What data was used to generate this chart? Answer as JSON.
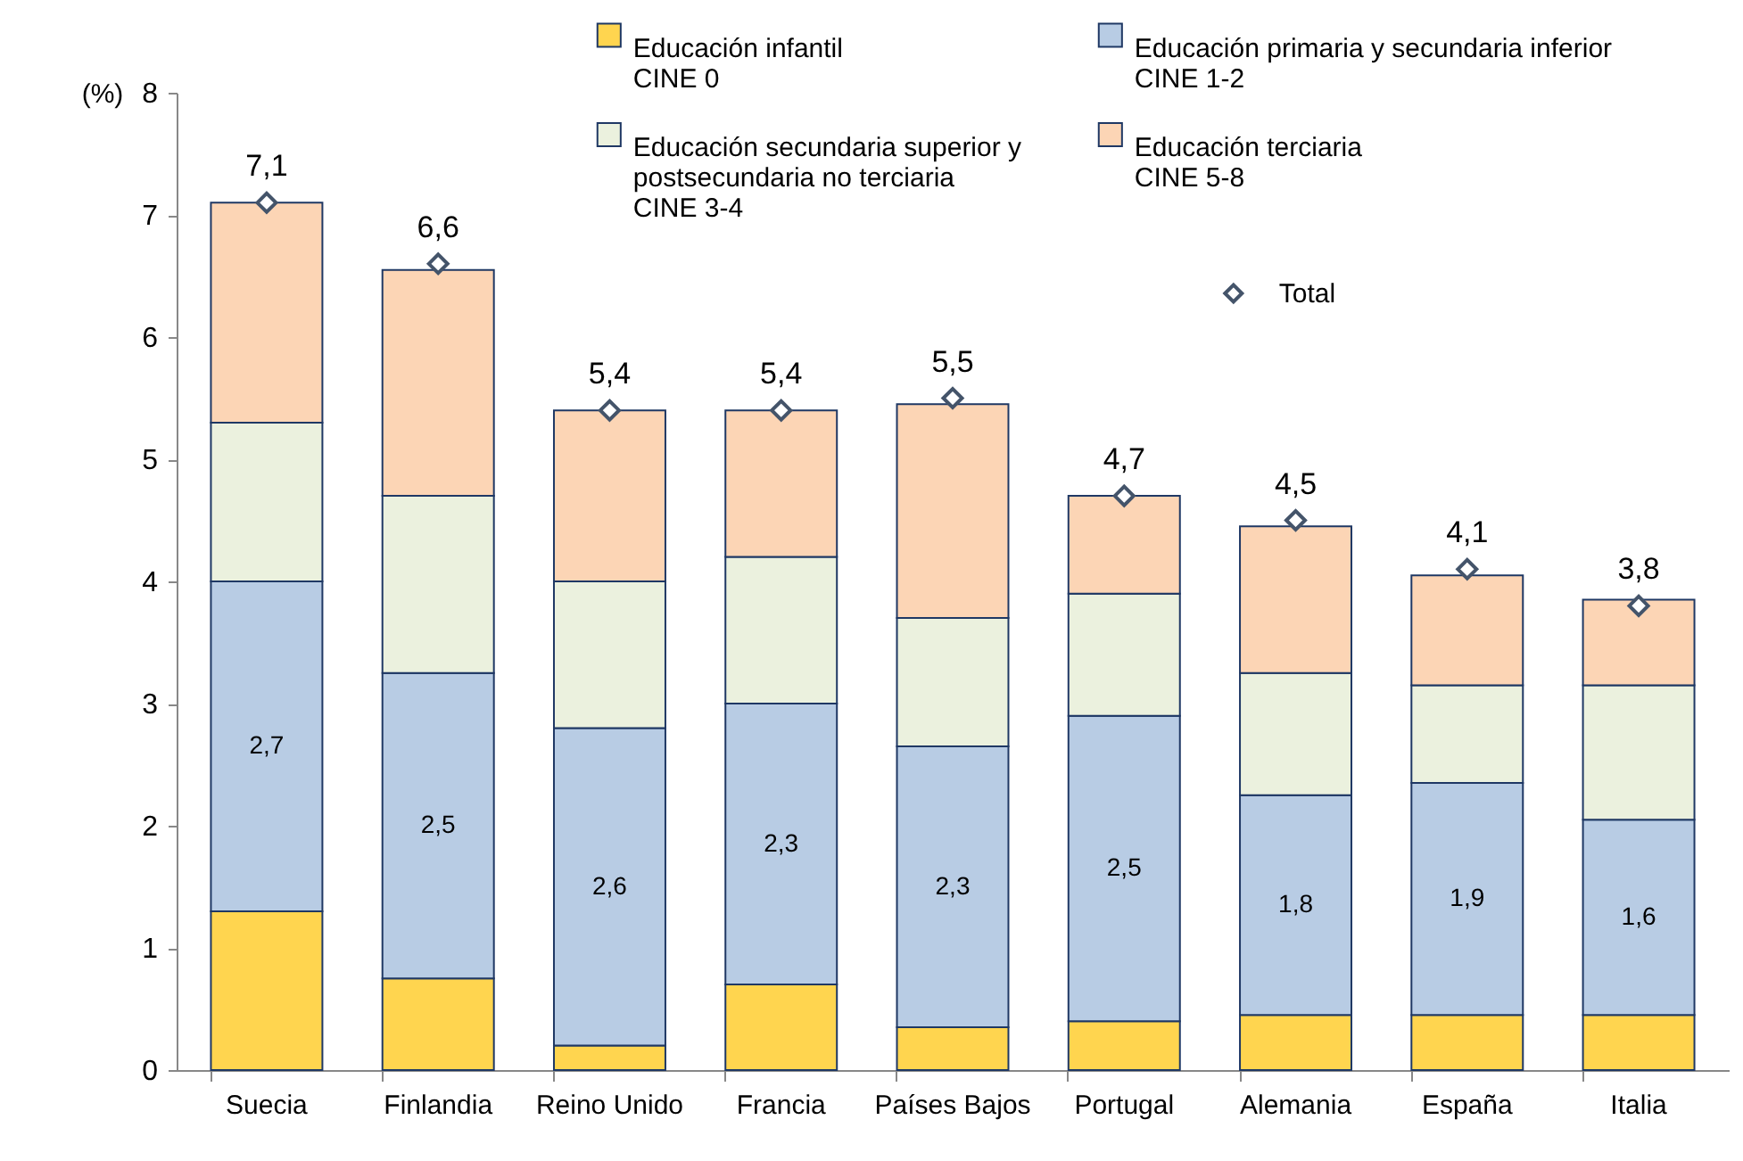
{
  "chart_data": {
    "type": "bar",
    "stacked": true,
    "ylabel": "(%)",
    "ylim": [
      0,
      8
    ],
    "yticks": [
      0,
      1,
      2,
      3,
      4,
      5,
      6,
      7,
      8
    ],
    "legend": "top right",
    "grid": false,
    "categories": [
      "Suecia",
      "Finlandia",
      "Reino Unido",
      "Francia",
      "Países Bajos",
      "Portugal",
      "Alemania",
      "España",
      "Italia"
    ],
    "series": [
      {
        "name": "Educación infantil\nCINE 0",
        "color": "#ffd54f",
        "values": [
          1.3,
          0.75,
          0.2,
          0.7,
          0.35,
          0.4,
          0.45,
          0.45,
          0.45
        ]
      },
      {
        "name": "Educación primaria y secundaria inferior\nCINE 1-2",
        "color": "#b8cce4",
        "values": [
          2.7,
          2.5,
          2.6,
          2.3,
          2.3,
          2.5,
          1.8,
          1.9,
          1.6
        ],
        "value_labels": [
          "2,7",
          "2,5",
          "2,6",
          "2,3",
          "2,3",
          "2,5",
          "1,8",
          "1,9",
          "1,6"
        ]
      },
      {
        "name": "Educación secundaria superior y\npostsecundaria no terciaria\nCINE 3-4",
        "color": "#ebf1de",
        "values": [
          1.3,
          1.45,
          1.2,
          1.2,
          1.05,
          1.0,
          1.0,
          0.8,
          1.1
        ]
      },
      {
        "name": "Educación terciaria\nCINE 5-8",
        "color": "#fcd5b5",
        "values": [
          1.8,
          1.85,
          1.4,
          1.2,
          1.75,
          0.8,
          1.2,
          0.9,
          0.7
        ]
      },
      {
        "name": "Total",
        "type": "scatter",
        "marker": "diamond",
        "color": "#44546a",
        "values": [
          7.1,
          6.6,
          5.4,
          5.4,
          5.5,
          4.7,
          4.5,
          4.1,
          3.8
        ],
        "value_labels": [
          "7,1",
          "6,6",
          "5,4",
          "5,4",
          "5,5",
          "4,7",
          "4,5",
          "4,1",
          "3,8"
        ]
      }
    ]
  }
}
